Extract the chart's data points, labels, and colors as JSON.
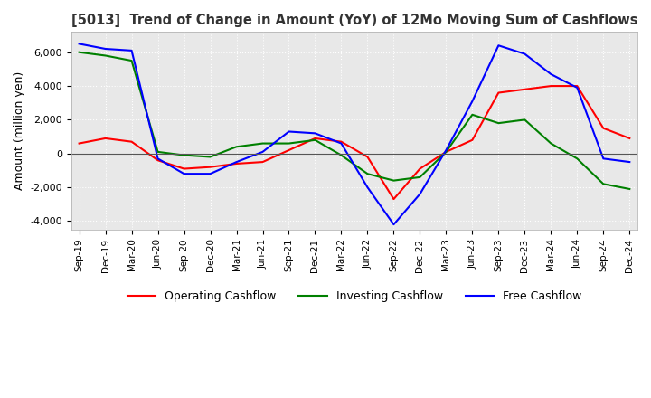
{
  "title": "[5013]  Trend of Change in Amount (YoY) of 12Mo Moving Sum of Cashflows",
  "ylabel": "Amount (million yen)",
  "ylim": [
    -4500,
    7200
  ],
  "yticks": [
    -4000,
    -2000,
    0,
    2000,
    4000,
    6000
  ],
  "x_labels": [
    "Sep-19",
    "Dec-19",
    "Mar-20",
    "Jun-20",
    "Sep-20",
    "Dec-20",
    "Mar-21",
    "Jun-21",
    "Sep-21",
    "Dec-21",
    "Mar-22",
    "Jun-22",
    "Sep-22",
    "Dec-22",
    "Mar-23",
    "Jun-23",
    "Sep-23",
    "Dec-23",
    "Mar-24",
    "Jun-24",
    "Sep-24",
    "Dec-24"
  ],
  "operating": [
    600,
    900,
    700,
    -400,
    -900,
    -800,
    -600,
    -500,
    200,
    900,
    700,
    -200,
    -2700,
    -900,
    100,
    800,
    3600,
    3800,
    4000,
    4000,
    1500,
    900
  ],
  "investing": [
    6000,
    5800,
    5500,
    100,
    -100,
    -200,
    400,
    600,
    600,
    800,
    -100,
    -1200,
    -1600,
    -1400,
    100,
    2300,
    1800,
    2000,
    600,
    -300,
    -1800,
    -2100
  ],
  "free": [
    6500,
    6200,
    6100,
    -300,
    -1200,
    -1200,
    -500,
    100,
    1300,
    1200,
    600,
    -2000,
    -4200,
    -2400,
    200,
    3100,
    6400,
    5900,
    4700,
    3900,
    -300,
    -500
  ],
  "op_color": "#ff0000",
  "inv_color": "#008000",
  "free_color": "#0000ff",
  "legend_labels": [
    "Operating Cashflow",
    "Investing Cashflow",
    "Free Cashflow"
  ],
  "plot_bg_color": "#e8e8e8",
  "fig_bg_color": "#ffffff",
  "grid_color": "#ffffff"
}
